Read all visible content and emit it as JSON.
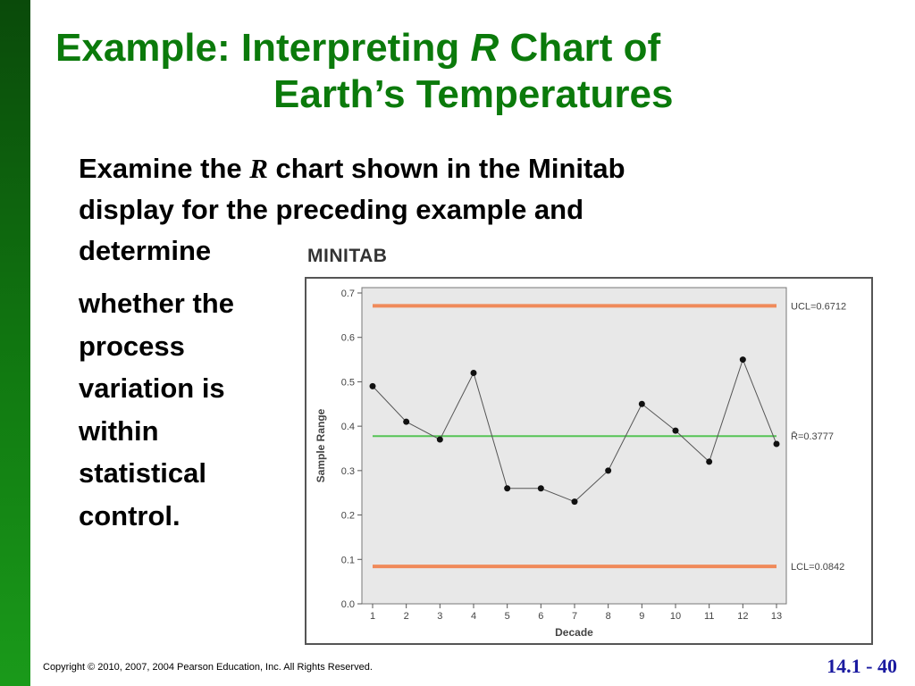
{
  "slide": {
    "title_part1": "Example: Interpreting ",
    "title_r": "R",
    "title_part2": " Chart of",
    "title_line2": "Earth’s Temperatures",
    "body_line1_a": "Examine the ",
    "body_line1_r": "R",
    "body_line1_b": " chart shown in the Minitab",
    "body_line2": "display for the preceding example and",
    "body_line3": "determine",
    "body_col": [
      "whether the",
      "process",
      "variation is",
      "within",
      "statistical",
      "control."
    ],
    "minitab_label": "MINITAB",
    "copyright": "Copyright © 2010, 2007, 2004 Pearson Education, Inc. All Rights Reserved.",
    "slide_number": "14.1 - 40"
  },
  "colors": {
    "title": "#0b7a0b",
    "side_bar": "#117a11",
    "limit_lines": "#f08a5a",
    "center_line": "#55c455",
    "plot_bg": "#e8e8e8",
    "slide_number": "#1a1aa0"
  },
  "chart_data": {
    "type": "line",
    "xlabel": "Decade",
    "ylabel": "Sample Range",
    "categories": [
      "1",
      "2",
      "3",
      "4",
      "5",
      "6",
      "7",
      "8",
      "9",
      "10",
      "11",
      "12",
      "13"
    ],
    "values": [
      0.49,
      0.41,
      0.37,
      0.52,
      0.26,
      0.26,
      0.23,
      0.3,
      0.45,
      0.39,
      0.32,
      0.55,
      0.36
    ],
    "yticks": [
      "0.0",
      "0.1",
      "0.2",
      "0.3",
      "0.4",
      "0.5",
      "0.6",
      "0.7"
    ],
    "ylim": [
      0,
      0.7
    ],
    "ucl": 0.6712,
    "center": 0.3777,
    "lcl": 0.0842,
    "ucl_label": "UCL=0.6712",
    "center_label": "R̄=0.3777",
    "lcl_label": "LCL=0.0842",
    "grid": false
  }
}
